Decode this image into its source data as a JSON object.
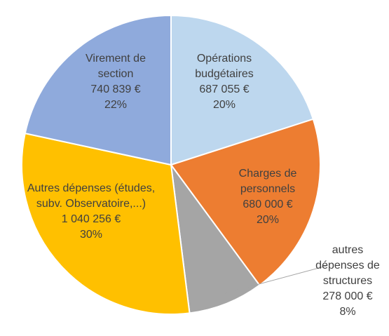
{
  "chart_data": {
    "type": "pie",
    "categories": [
      "Opérations budgétaires",
      "Charges de personnels",
      "autres dépenses de structures",
      "Autres dépenses (études, subv. Observatoire,...)",
      "Virement de section"
    ],
    "values": [
      687055,
      680000,
      278000,
      1040256,
      740839
    ],
    "value_labels": [
      "687 055 €",
      "680 000 €",
      "278 000 €",
      "1 040 256 €",
      "740 839 €"
    ],
    "percent_labels": [
      "20%",
      "20%",
      "8%",
      "30%",
      "22%"
    ],
    "colors": [
      "#bdd7ee",
      "#ed7d31",
      "#a5a5a5",
      "#ffc000",
      "#8faadc"
    ]
  }
}
